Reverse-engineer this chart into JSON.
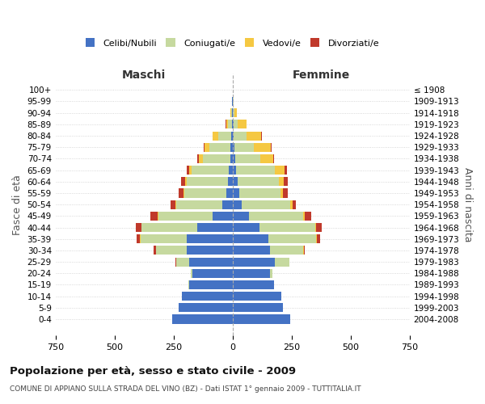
{
  "age_groups": [
    "100+",
    "95-99",
    "90-94",
    "85-89",
    "80-84",
    "75-79",
    "70-74",
    "65-69",
    "60-64",
    "55-59",
    "50-54",
    "45-49",
    "40-44",
    "35-39",
    "30-34",
    "25-29",
    "20-24",
    "15-19",
    "10-14",
    "5-9",
    "0-4"
  ],
  "birth_years": [
    "≤ 1908",
    "1909-1913",
    "1914-1918",
    "1919-1923",
    "1924-1928",
    "1929-1933",
    "1934-1938",
    "1939-1943",
    "1944-1948",
    "1949-1953",
    "1954-1958",
    "1959-1963",
    "1964-1968",
    "1969-1973",
    "1974-1978",
    "1979-1983",
    "1984-1988",
    "1989-1993",
    "1994-1998",
    "1999-2003",
    "2004-2008"
  ],
  "male": {
    "celibi": [
      0,
      1,
      2,
      4,
      6,
      8,
      10,
      15,
      20,
      28,
      45,
      85,
      150,
      195,
      195,
      185,
      170,
      185,
      215,
      230,
      255
    ],
    "coniugati": [
      0,
      1,
      4,
      15,
      55,
      90,
      115,
      160,
      175,
      175,
      195,
      230,
      235,
      195,
      130,
      55,
      8,
      2,
      0,
      0,
      0
    ],
    "vedovi": [
      0,
      1,
      3,
      8,
      22,
      20,
      18,
      8,
      5,
      5,
      3,
      2,
      2,
      2,
      0,
      0,
      0,
      0,
      0,
      0,
      0
    ],
    "divorziati": [
      0,
      0,
      0,
      2,
      2,
      5,
      5,
      10,
      18,
      20,
      18,
      32,
      22,
      15,
      8,
      2,
      0,
      0,
      0,
      0,
      0
    ]
  },
  "female": {
    "nubili": [
      0,
      2,
      2,
      3,
      5,
      8,
      12,
      15,
      22,
      28,
      40,
      70,
      115,
      150,
      160,
      180,
      160,
      175,
      205,
      215,
      245
    ],
    "coniugate": [
      0,
      1,
      5,
      20,
      55,
      82,
      105,
      165,
      175,
      175,
      205,
      230,
      235,
      205,
      140,
      60,
      10,
      2,
      0,
      0,
      0
    ],
    "vedove": [
      0,
      2,
      10,
      35,
      62,
      72,
      55,
      40,
      20,
      12,
      8,
      5,
      5,
      3,
      2,
      0,
      0,
      0,
      0,
      0,
      0
    ],
    "divorziate": [
      0,
      0,
      0,
      0,
      2,
      5,
      5,
      10,
      18,
      18,
      15,
      28,
      22,
      12,
      5,
      2,
      0,
      0,
      0,
      0,
      0
    ]
  },
  "colors": {
    "celibi": "#4472C4",
    "coniugati": "#C6D99F",
    "vedovi": "#F5C842",
    "divorziati": "#C0392B"
  },
  "title": "Popolazione per età, sesso e stato civile - 2009",
  "subtitle": "COMUNE DI APPIANO SULLA STRADA DEL VINO (BZ) - Dati ISTAT 1° gennaio 2009 - TUTTITALIA.IT",
  "xlabel_left": "Maschi",
  "xlabel_right": "Femmine",
  "ylabel_left": "Fasce di età",
  "ylabel_right": "Anni di nascita",
  "xlim": 750,
  "legend_labels": [
    "Celibi/Nubili",
    "Coniugati/e",
    "Vedovi/e",
    "Divorziati/e"
  ],
  "background_color": "#ffffff"
}
